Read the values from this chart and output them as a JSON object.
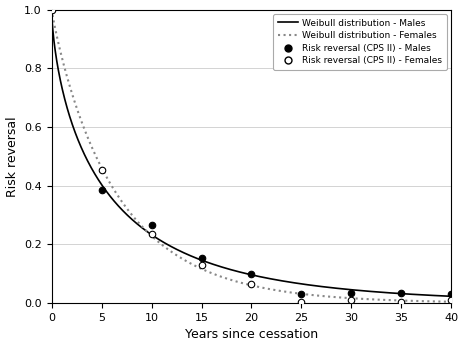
{
  "title": "",
  "xlabel": "Years since cessation",
  "ylabel": "Risk reversal",
  "xlim": [
    0,
    40
  ],
  "ylim": [
    0,
    1.0
  ],
  "xticks": [
    0,
    5,
    10,
    15,
    20,
    25,
    30,
    35,
    40
  ],
  "yticks": [
    0.0,
    0.2,
    0.4,
    0.6,
    0.8,
    1.0
  ],
  "weibull_males_params": {
    "lambda": 0.18,
    "k": 0.55
  },
  "weibull_females_params": {
    "lambda": 0.25,
    "k": 0.6
  },
  "scatter_males_x": [
    5,
    10,
    15,
    20,
    25,
    30,
    35,
    40
  ],
  "scatter_males_y": [
    0.385,
    0.265,
    0.155,
    0.1,
    0.03,
    0.035,
    0.035,
    0.03
  ],
  "scatter_females_x": [
    5,
    10,
    15,
    20,
    25,
    30,
    35,
    40
  ],
  "scatter_females_y": [
    0.455,
    0.235,
    0.13,
    0.065,
    0.003,
    0.01,
    0.005,
    0.01
  ],
  "legend_labels": [
    "Weibull distribution - Males",
    "Weibull distribution - Females",
    "Risk reversal (CPS II) - Males",
    "Risk reversal (CPS II) - Females"
  ],
  "line_color_males": "#000000",
  "line_color_females": "#888888",
  "background_color": "#ffffff",
  "grid_color": "#cccccc"
}
